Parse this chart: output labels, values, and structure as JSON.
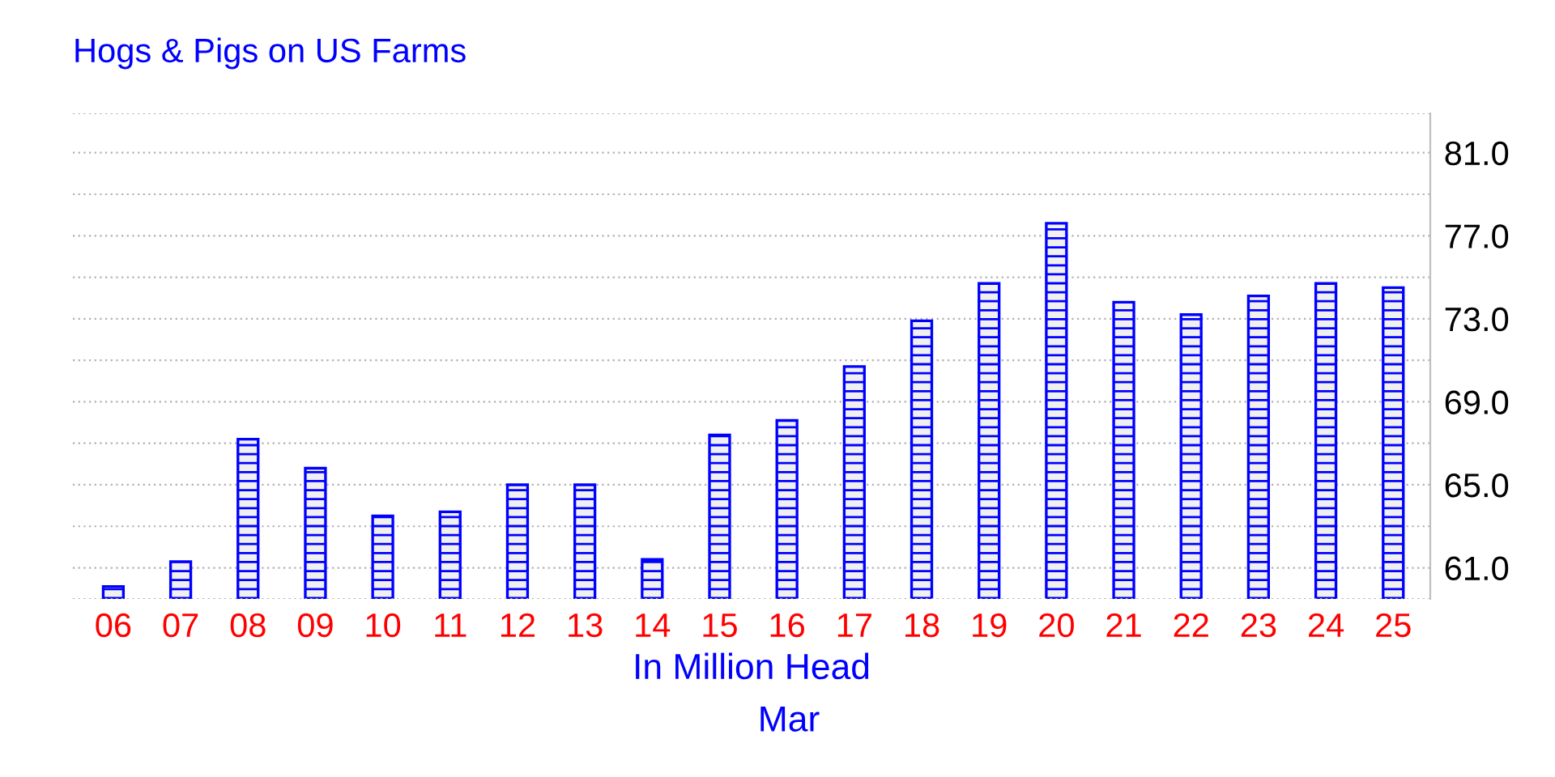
{
  "chart_data": {
    "type": "bar",
    "title": "Hogs & Pigs on US Farms",
    "xlabel": "In Million Head",
    "annotations": [
      "Mar"
    ],
    "categories": [
      "06",
      "07",
      "08",
      "09",
      "10",
      "11",
      "12",
      "13",
      "14",
      "15",
      "16",
      "17",
      "18",
      "19",
      "20",
      "21",
      "22",
      "23",
      "24",
      "25"
    ],
    "values": [
      60.1,
      61.3,
      67.2,
      65.8,
      63.5,
      63.7,
      65.0,
      65.0,
      61.4,
      67.4,
      68.1,
      70.7,
      72.9,
      74.7,
      77.6,
      73.8,
      73.2,
      74.1,
      74.7,
      74.5
    ],
    "color": "#0000ff",
    "ylim": [
      59.5,
      82.9
    ],
    "yticks": [
      {
        "value": 61,
        "label": "61.0"
      },
      {
        "value": 63,
        "label": null
      },
      {
        "value": 65,
        "label": "65.0"
      },
      {
        "value": 67,
        "label": null
      },
      {
        "value": 69,
        "label": "69.0"
      },
      {
        "value": 71,
        "label": null
      },
      {
        "value": 73,
        "label": "73.0"
      },
      {
        "value": 75,
        "label": null
      },
      {
        "value": 77,
        "label": "77.0"
      },
      {
        "value": 79,
        "label": null
      },
      {
        "value": 81,
        "label": "81.0"
      }
    ],
    "grid": "y"
  }
}
